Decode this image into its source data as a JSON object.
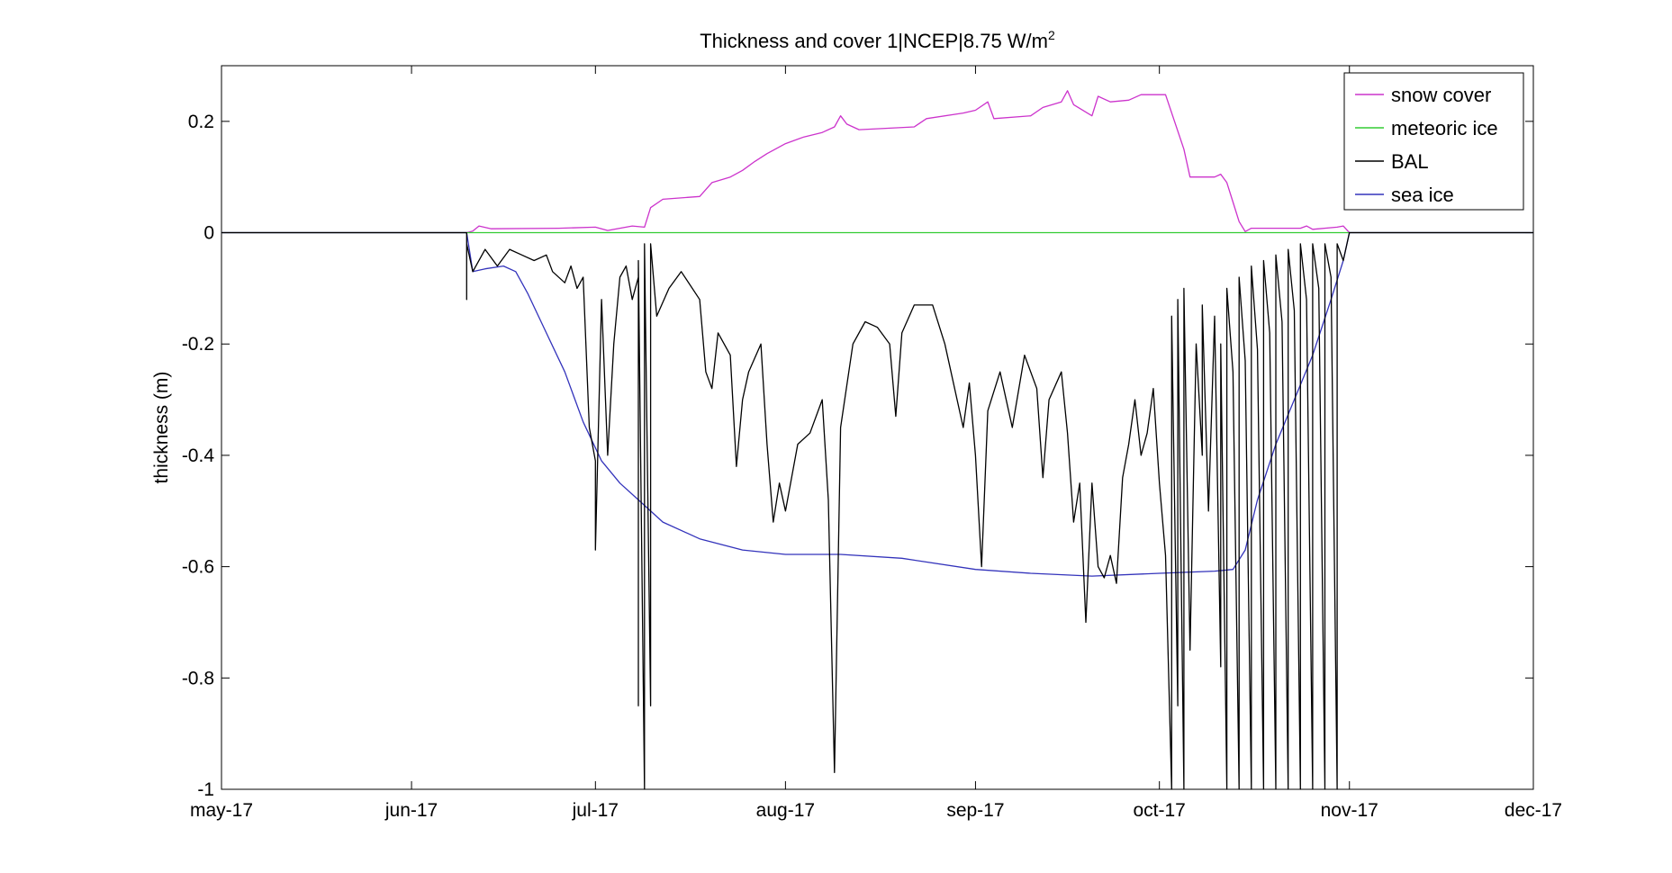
{
  "chart_data": {
    "type": "line",
    "title": "Thickness and cover 1|NCEP|8.75 W/m",
    "title_superscript": "2",
    "xlabel": "",
    "ylabel": "thickness (m)",
    "x_tick_labels": [
      "may-17",
      "jun-17",
      "jul-17",
      "aug-17",
      "sep-17",
      "oct-17",
      "nov-17",
      "dec-17"
    ],
    "x_ticks": [
      "2017-05-01",
      "2017-06-01",
      "2017-07-01",
      "2017-08-01",
      "2017-09-01",
      "2017-10-01",
      "2017-11-01",
      "2017-12-01"
    ],
    "xlim": [
      "2017-05-01",
      "2017-12-01"
    ],
    "ylim": [
      -1,
      0.3
    ],
    "y_ticks": [
      -1,
      -0.8,
      -0.6,
      -0.4,
      -0.2,
      0,
      0.2
    ],
    "y_tick_labels": [
      "-1",
      "-0.8",
      "-0.6",
      "-0.4",
      "-0.2",
      "0",
      "0.2"
    ],
    "legend_position": "top-right",
    "grid": false,
    "series": [
      {
        "name": "snow cover",
        "color": "#cc33cc",
        "points": [
          [
            "2017-05-01",
            0
          ],
          [
            "2017-06-10",
            0
          ],
          [
            "2017-06-11",
            0.003
          ],
          [
            "2017-06-12",
            0.012
          ],
          [
            "2017-06-14",
            0.007
          ],
          [
            "2017-06-25",
            0.008
          ],
          [
            "2017-07-01",
            0.01
          ],
          [
            "2017-07-03",
            0.004
          ],
          [
            "2017-07-07",
            0.012
          ],
          [
            "2017-07-09",
            0.01
          ],
          [
            "2017-07-10",
            0.045
          ],
          [
            "2017-07-12",
            0.06
          ],
          [
            "2017-07-18",
            0.065
          ],
          [
            "2017-07-20",
            0.09
          ],
          [
            "2017-07-23",
            0.1
          ],
          [
            "2017-07-25",
            0.112
          ],
          [
            "2017-07-27",
            0.128
          ],
          [
            "2017-07-29",
            0.142
          ],
          [
            "2017-08-01",
            0.16
          ],
          [
            "2017-08-04",
            0.172
          ],
          [
            "2017-08-07",
            0.18
          ],
          [
            "2017-08-09",
            0.19
          ],
          [
            "2017-08-10",
            0.21
          ],
          [
            "2017-08-11",
            0.195
          ],
          [
            "2017-08-13",
            0.185
          ],
          [
            "2017-08-22",
            0.19
          ],
          [
            "2017-08-24",
            0.205
          ],
          [
            "2017-08-30",
            0.215
          ],
          [
            "2017-09-01",
            0.22
          ],
          [
            "2017-09-03",
            0.235
          ],
          [
            "2017-09-04",
            0.205
          ],
          [
            "2017-09-10",
            0.21
          ],
          [
            "2017-09-12",
            0.225
          ],
          [
            "2017-09-15",
            0.235
          ],
          [
            "2017-09-16",
            0.255
          ],
          [
            "2017-09-17",
            0.23
          ],
          [
            "2017-09-20",
            0.21
          ],
          [
            "2017-09-21",
            0.245
          ],
          [
            "2017-09-23",
            0.235
          ],
          [
            "2017-09-26",
            0.238
          ],
          [
            "2017-09-28",
            0.248
          ],
          [
            "2017-10-02",
            0.248
          ],
          [
            "2017-10-05",
            0.15
          ],
          [
            "2017-10-06",
            0.1
          ],
          [
            "2017-10-10",
            0.1
          ],
          [
            "2017-10-11",
            0.105
          ],
          [
            "2017-10-12",
            0.09
          ],
          [
            "2017-10-13",
            0.055
          ],
          [
            "2017-10-14",
            0.02
          ],
          [
            "2017-10-15",
            0.002
          ],
          [
            "2017-10-16",
            0.008
          ],
          [
            "2017-10-24",
            0.008
          ],
          [
            "2017-10-25",
            0.012
          ],
          [
            "2017-10-26",
            0.006
          ],
          [
            "2017-10-30",
            0.01
          ],
          [
            "2017-10-31",
            0.012
          ],
          [
            "2017-11-01",
            0
          ],
          [
            "2017-12-01",
            0
          ]
        ]
      },
      {
        "name": "meteoric ice",
        "color": "#33cc33",
        "points": [
          [
            "2017-05-01",
            0
          ],
          [
            "2017-12-01",
            0
          ]
        ]
      },
      {
        "name": "BAL",
        "color": "#000000",
        "points": [
          [
            "2017-05-01",
            0
          ],
          [
            "2017-06-10",
            0
          ],
          [
            "2017-06-10",
            -0.12
          ],
          [
            "2017-06-10",
            -0.02
          ],
          [
            "2017-06-11",
            -0.07
          ],
          [
            "2017-06-13",
            -0.03
          ],
          [
            "2017-06-15",
            -0.06
          ],
          [
            "2017-06-17",
            -0.03
          ],
          [
            "2017-06-19",
            -0.04
          ],
          [
            "2017-06-21",
            -0.05
          ],
          [
            "2017-06-23",
            -0.04
          ],
          [
            "2017-06-24",
            -0.07
          ],
          [
            "2017-06-26",
            -0.09
          ],
          [
            "2017-06-27",
            -0.06
          ],
          [
            "2017-06-28",
            -0.1
          ],
          [
            "2017-06-29",
            -0.08
          ],
          [
            "2017-06-30",
            -0.35
          ],
          [
            "2017-07-01",
            -0.41
          ],
          [
            "2017-07-01",
            -0.57
          ],
          [
            "2017-07-02",
            -0.12
          ],
          [
            "2017-07-03",
            -0.4
          ],
          [
            "2017-07-04",
            -0.2
          ],
          [
            "2017-07-05",
            -0.08
          ],
          [
            "2017-07-06",
            -0.06
          ],
          [
            "2017-07-07",
            -0.12
          ],
          [
            "2017-07-08",
            -0.08
          ],
          [
            "2017-07-08",
            -0.85
          ],
          [
            "2017-07-08",
            -0.05
          ],
          [
            "2017-07-09",
            -1.0
          ],
          [
            "2017-07-09",
            -0.02
          ],
          [
            "2017-07-10",
            -0.85
          ],
          [
            "2017-07-10",
            -0.02
          ],
          [
            "2017-07-11",
            -0.15
          ],
          [
            "2017-07-13",
            -0.1
          ],
          [
            "2017-07-15",
            -0.07
          ],
          [
            "2017-07-18",
            -0.12
          ],
          [
            "2017-07-19",
            -0.25
          ],
          [
            "2017-07-20",
            -0.28
          ],
          [
            "2017-07-21",
            -0.18
          ],
          [
            "2017-07-23",
            -0.22
          ],
          [
            "2017-07-24",
            -0.42
          ],
          [
            "2017-07-25",
            -0.3
          ],
          [
            "2017-07-26",
            -0.25
          ],
          [
            "2017-07-28",
            -0.2
          ],
          [
            "2017-07-29",
            -0.38
          ],
          [
            "2017-07-30",
            -0.52
          ],
          [
            "2017-07-31",
            -0.45
          ],
          [
            "2017-08-01",
            -0.5
          ],
          [
            "2017-08-03",
            -0.38
          ],
          [
            "2017-08-05",
            -0.36
          ],
          [
            "2017-08-07",
            -0.3
          ],
          [
            "2017-08-08",
            -0.48
          ],
          [
            "2017-08-09",
            -0.97
          ],
          [
            "2017-08-10",
            -0.35
          ],
          [
            "2017-08-12",
            -0.2
          ],
          [
            "2017-08-14",
            -0.16
          ],
          [
            "2017-08-16",
            -0.17
          ],
          [
            "2017-08-18",
            -0.2
          ],
          [
            "2017-08-19",
            -0.33
          ],
          [
            "2017-08-20",
            -0.18
          ],
          [
            "2017-08-22",
            -0.13
          ],
          [
            "2017-08-25",
            -0.13
          ],
          [
            "2017-08-27",
            -0.2
          ],
          [
            "2017-08-29",
            -0.3
          ],
          [
            "2017-08-30",
            -0.35
          ],
          [
            "2017-08-31",
            -0.27
          ],
          [
            "2017-09-01",
            -0.4
          ],
          [
            "2017-09-02",
            -0.6
          ],
          [
            "2017-09-03",
            -0.32
          ],
          [
            "2017-09-05",
            -0.25
          ],
          [
            "2017-09-07",
            -0.35
          ],
          [
            "2017-09-09",
            -0.22
          ],
          [
            "2017-09-11",
            -0.28
          ],
          [
            "2017-09-12",
            -0.44
          ],
          [
            "2017-09-13",
            -0.3
          ],
          [
            "2017-09-15",
            -0.25
          ],
          [
            "2017-09-16",
            -0.36
          ],
          [
            "2017-09-17",
            -0.52
          ],
          [
            "2017-09-18",
            -0.45
          ],
          [
            "2017-09-19",
            -0.7
          ],
          [
            "2017-09-20",
            -0.45
          ],
          [
            "2017-09-21",
            -0.6
          ],
          [
            "2017-09-22",
            -0.62
          ],
          [
            "2017-09-23",
            -0.58
          ],
          [
            "2017-09-24",
            -0.63
          ],
          [
            "2017-09-25",
            -0.44
          ],
          [
            "2017-09-26",
            -0.38
          ],
          [
            "2017-09-27",
            -0.3
          ],
          [
            "2017-09-28",
            -0.4
          ],
          [
            "2017-09-29",
            -0.36
          ],
          [
            "2017-09-30",
            -0.28
          ],
          [
            "2017-10-01",
            -0.45
          ],
          [
            "2017-10-02",
            -0.58
          ],
          [
            "2017-10-03",
            -1.0
          ],
          [
            "2017-10-03",
            -0.15
          ],
          [
            "2017-10-04",
            -0.85
          ],
          [
            "2017-10-04",
            -0.12
          ],
          [
            "2017-10-05",
            -1.0
          ],
          [
            "2017-10-05",
            -0.1
          ],
          [
            "2017-10-06",
            -0.75
          ],
          [
            "2017-10-07",
            -0.2
          ],
          [
            "2017-10-08",
            -0.4
          ],
          [
            "2017-10-08",
            -0.13
          ],
          [
            "2017-10-09",
            -0.5
          ],
          [
            "2017-10-10",
            -0.15
          ],
          [
            "2017-10-11",
            -0.78
          ],
          [
            "2017-10-11",
            -0.2
          ],
          [
            "2017-10-12",
            -1.0
          ],
          [
            "2017-10-12",
            -0.1
          ],
          [
            "2017-10-13",
            -0.25
          ],
          [
            "2017-10-14",
            -1.0
          ],
          [
            "2017-10-14",
            -0.08
          ],
          [
            "2017-10-15",
            -0.23
          ],
          [
            "2017-10-16",
            -1.0
          ],
          [
            "2017-10-16",
            -0.06
          ],
          [
            "2017-10-17",
            -0.21
          ],
          [
            "2017-10-18",
            -1.0
          ],
          [
            "2017-10-18",
            -0.05
          ],
          [
            "2017-10-19",
            -0.18
          ],
          [
            "2017-10-20",
            -1.0
          ],
          [
            "2017-10-20",
            -0.04
          ],
          [
            "2017-10-21",
            -0.16
          ],
          [
            "2017-10-22",
            -1.0
          ],
          [
            "2017-10-22",
            -0.03
          ],
          [
            "2017-10-23",
            -0.14
          ],
          [
            "2017-10-24",
            -1.0
          ],
          [
            "2017-10-24",
            -0.02
          ],
          [
            "2017-10-25",
            -0.12
          ],
          [
            "2017-10-26",
            -1.0
          ],
          [
            "2017-10-26",
            -0.02
          ],
          [
            "2017-10-27",
            -0.1
          ],
          [
            "2017-10-28",
            -1.0
          ],
          [
            "2017-10-28",
            -0.02
          ],
          [
            "2017-10-29",
            -0.08
          ],
          [
            "2017-10-30",
            -1.0
          ],
          [
            "2017-10-30",
            -0.02
          ],
          [
            "2017-10-31",
            -0.05
          ],
          [
            "2017-11-01",
            0
          ],
          [
            "2017-12-01",
            0
          ]
        ]
      },
      {
        "name": "sea ice",
        "color": "#3333bb",
        "points": [
          [
            "2017-05-01",
            0
          ],
          [
            "2017-06-10",
            0
          ],
          [
            "2017-06-11",
            -0.07
          ],
          [
            "2017-06-13",
            -0.065
          ],
          [
            "2017-06-16",
            -0.06
          ],
          [
            "2017-06-18",
            -0.07
          ],
          [
            "2017-06-20",
            -0.11
          ],
          [
            "2017-06-23",
            -0.18
          ],
          [
            "2017-06-26",
            -0.25
          ],
          [
            "2017-06-29",
            -0.34
          ],
          [
            "2017-07-02",
            -0.41
          ],
          [
            "2017-07-05",
            -0.45
          ],
          [
            "2017-07-08",
            -0.48
          ],
          [
            "2017-07-12",
            -0.52
          ],
          [
            "2017-07-18",
            -0.55
          ],
          [
            "2017-07-25",
            -0.57
          ],
          [
            "2017-08-01",
            -0.578
          ],
          [
            "2017-08-10",
            -0.578
          ],
          [
            "2017-08-20",
            -0.585
          ],
          [
            "2017-09-01",
            -0.605
          ],
          [
            "2017-09-10",
            -0.612
          ],
          [
            "2017-09-20",
            -0.617
          ],
          [
            "2017-10-01",
            -0.612
          ],
          [
            "2017-10-10",
            -0.608
          ],
          [
            "2017-10-13",
            -0.605
          ],
          [
            "2017-10-15",
            -0.57
          ],
          [
            "2017-10-17",
            -0.48
          ],
          [
            "2017-10-20",
            -0.38
          ],
          [
            "2017-10-23",
            -0.3
          ],
          [
            "2017-10-26",
            -0.22
          ],
          [
            "2017-10-29",
            -0.12
          ],
          [
            "2017-10-31",
            -0.05
          ],
          [
            "2017-11-01",
            0
          ],
          [
            "2017-12-01",
            0
          ]
        ]
      }
    ]
  }
}
